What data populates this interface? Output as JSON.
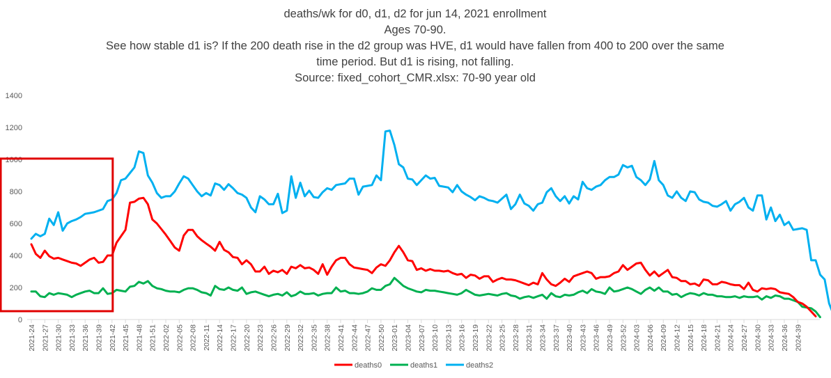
{
  "chart_data": {
    "type": "line",
    "title": [
      "deaths/wk for d0, d1, d2 for jun 14, 2021 enrollment",
      "Ages 70-90.",
      "See how stable d1 is? If the 200 death rise in the d2 group was HVE, d1 would have fallen from 400 to 200 over the same",
      "time period. But d1 is rising, not falling.",
      "Source: fixed_cohort_CMR.xlsx: 70-90 year old"
    ],
    "ylim": [
      0,
      1400
    ],
    "yticks": [
      0,
      200,
      400,
      600,
      800,
      1000,
      1200,
      1400
    ],
    "grid": false,
    "legend_position": "bottom-center",
    "start_week": "2021-24",
    "x_tick_labels": [
      "2021-24",
      "2021-27",
      "2021-30",
      "2021-33",
      "2021-36",
      "2021-39",
      "2021-42",
      "2021-45",
      "2021-48",
      "2021-51",
      "2022-02",
      "2022-05",
      "2022-08",
      "2022-11",
      "2022-14",
      "2022-17",
      "2022-20",
      "2022-23",
      "2022-26",
      "2022-29",
      "2022-32",
      "2022-35",
      "2022-38",
      "2022-41",
      "2022-44",
      "2022-47",
      "2022-50",
      "2023-01",
      "2023-04",
      "2023-07",
      "2023-10",
      "2023-13",
      "2023-16",
      "2023-19",
      "2023-22",
      "2023-25",
      "2023-28",
      "2023-31",
      "2023-34",
      "2023-37",
      "2023-40",
      "2023-43",
      "2023-46",
      "2023-49",
      "2023-52",
      "2024-03",
      "2024-06",
      "2024-09",
      "2024-12",
      "2024-15",
      "2024-18",
      "2024-21",
      "2024-24",
      "2024-27",
      "2024-30",
      "2024-33",
      "2024-36",
      "2024-39"
    ],
    "highlight_box": {
      "from_week_index": 0,
      "to_week_index": 18,
      "y_from": 0,
      "y_to": 1005,
      "color": "#e00000"
    },
    "series": [
      {
        "name": "deaths0",
        "color": "#ff0000",
        "values": [
          470,
          410,
          385,
          430,
          395,
          380,
          385,
          375,
          365,
          355,
          350,
          335,
          355,
          375,
          385,
          355,
          360,
          400,
          400,
          480,
          520,
          560,
          730,
          735,
          755,
          760,
          720,
          625,
          600,
          565,
          530,
          490,
          450,
          430,
          525,
          560,
          560,
          520,
          495,
          475,
          455,
          430,
          485,
          435,
          420,
          390,
          385,
          345,
          370,
          345,
          300,
          300,
          330,
          285,
          305,
          295,
          310,
          285,
          330,
          320,
          340,
          320,
          325,
          310,
          285,
          345,
          280,
          330,
          370,
          385,
          385,
          345,
          325,
          320,
          315,
          310,
          290,
          325,
          345,
          335,
          370,
          420,
          460,
          420,
          370,
          365,
          310,
          320,
          305,
          315,
          305,
          305,
          300,
          305,
          290,
          280,
          285,
          260,
          280,
          275,
          255,
          270,
          270,
          235,
          250,
          260,
          250,
          250,
          245,
          235,
          225,
          215,
          230,
          220,
          290,
          250,
          220,
          210,
          230,
          255,
          235,
          270,
          280,
          290,
          300,
          290,
          255,
          265,
          265,
          270,
          290,
          300,
          340,
          310,
          330,
          350,
          355,
          310,
          275,
          300,
          270,
          290,
          310,
          265,
          260,
          240,
          240,
          220,
          225,
          210,
          250,
          245,
          220,
          220,
          235,
          230,
          220,
          215,
          215,
          190,
          230,
          185,
          175,
          195,
          190,
          195,
          190,
          170,
          165,
          160,
          140,
          110,
          100,
          80,
          50,
          20
        ]
      },
      {
        "name": "deaths1",
        "color": "#00b050",
        "values": [
          175,
          175,
          145,
          140,
          165,
          155,
          165,
          160,
          155,
          140,
          155,
          165,
          175,
          180,
          165,
          165,
          195,
          160,
          165,
          185,
          180,
          175,
          205,
          210,
          235,
          225,
          240,
          210,
          195,
          190,
          180,
          175,
          175,
          170,
          185,
          195,
          195,
          185,
          170,
          165,
          150,
          210,
          190,
          185,
          200,
          185,
          180,
          200,
          160,
          170,
          175,
          165,
          155,
          145,
          155,
          160,
          150,
          170,
          145,
          155,
          175,
          160,
          160,
          165,
          150,
          160,
          165,
          165,
          200,
          175,
          180,
          165,
          165,
          160,
          165,
          175,
          195,
          185,
          185,
          210,
          220,
          260,
          235,
          210,
          195,
          185,
          175,
          170,
          185,
          180,
          180,
          175,
          170,
          165,
          160,
          155,
          165,
          185,
          170,
          155,
          150,
          155,
          160,
          155,
          150,
          160,
          165,
          150,
          145,
          130,
          140,
          145,
          135,
          145,
          155,
          130,
          165,
          145,
          140,
          155,
          150,
          155,
          170,
          180,
          165,
          190,
          175,
          170,
          160,
          200,
          175,
          180,
          190,
          200,
          190,
          175,
          160,
          185,
          200,
          180,
          200,
          175,
          175,
          155,
          160,
          140,
          155,
          165,
          160,
          150,
          165,
          155,
          155,
          145,
          145,
          140,
          140,
          145,
          135,
          145,
          140,
          140,
          145,
          125,
          145,
          135,
          150,
          145,
          130,
          130,
          120,
          110,
          80,
          75,
          70,
          50,
          15
        ]
      },
      {
        "name": "deaths2",
        "color": "#00b0f0",
        "values": [
          505,
          535,
          520,
          535,
          630,
          590,
          670,
          555,
          600,
          615,
          625,
          640,
          660,
          665,
          670,
          680,
          690,
          740,
          750,
          790,
          870,
          880,
          915,
          950,
          1050,
          1040,
          900,
          855,
          790,
          760,
          770,
          770,
          800,
          850,
          895,
          880,
          840,
          800,
          770,
          790,
          775,
          850,
          840,
          810,
          845,
          820,
          790,
          780,
          760,
          700,
          670,
          770,
          750,
          720,
          720,
          785,
          665,
          680,
          895,
          760,
          855,
          770,
          805,
          765,
          760,
          795,
          820,
          810,
          840,
          845,
          850,
          880,
          880,
          780,
          830,
          835,
          840,
          900,
          870,
          1175,
          1180,
          1090,
          970,
          950,
          880,
          875,
          840,
          870,
          900,
          880,
          885,
          835,
          830,
          825,
          795,
          840,
          800,
          780,
          765,
          745,
          770,
          760,
          745,
          740,
          730,
          755,
          780,
          690,
          720,
          780,
          725,
          710,
          680,
          720,
          730,
          795,
          820,
          770,
          740,
          770,
          725,
          770,
          750,
          860,
          820,
          810,
          830,
          840,
          870,
          890,
          890,
          905,
          965,
          950,
          960,
          890,
          870,
          840,
          875,
          990,
          870,
          840,
          775,
          760,
          800,
          760,
          740,
          800,
          795,
          750,
          735,
          730,
          710,
          705,
          720,
          740,
          680,
          720,
          735,
          760,
          700,
          680,
          775,
          775,
          625,
          700,
          615,
          655,
          590,
          610,
          560,
          565,
          570,
          560,
          370,
          370,
          280,
          250,
          100,
          30
        ]
      }
    ]
  }
}
